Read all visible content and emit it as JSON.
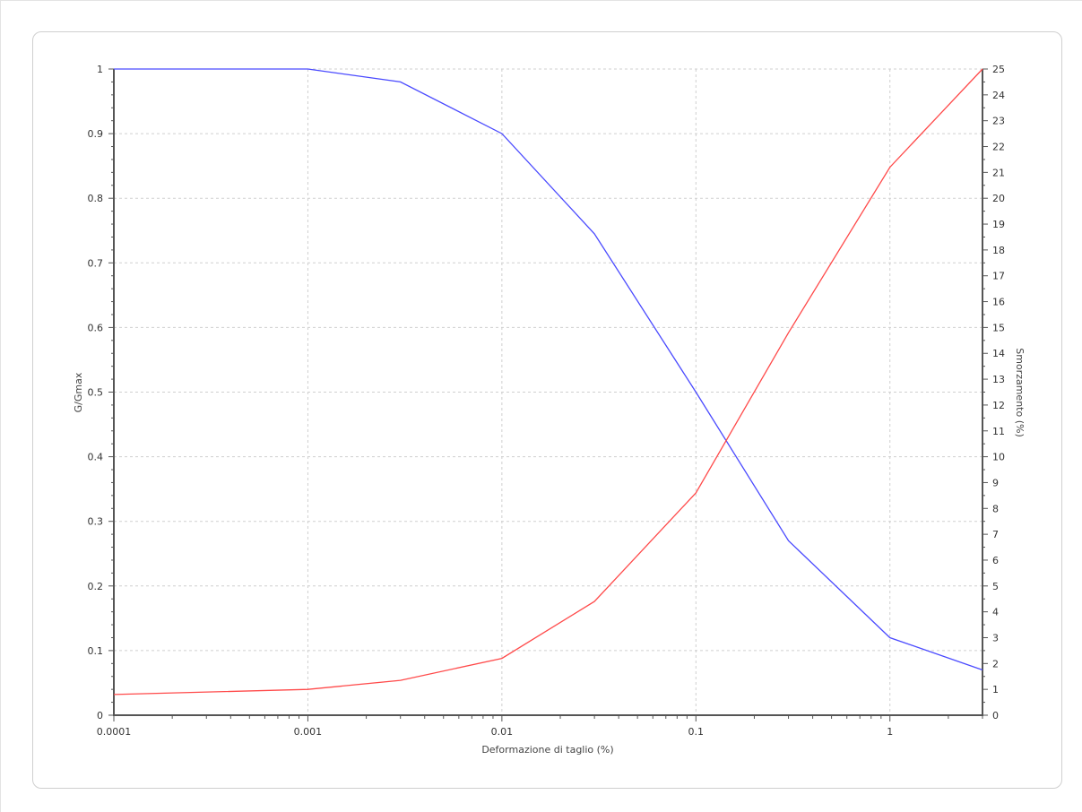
{
  "chart_data": {
    "type": "line",
    "title": "",
    "xlabel": "Deformazione di taglio (%)",
    "ylabel_left": "G/Gmax",
    "ylabel_right": "Smorzamento (%)",
    "x_scale": "log",
    "xlim": [
      0.0001,
      3
    ],
    "ylim_left": [
      0,
      1
    ],
    "ylim_right": [
      0,
      25
    ],
    "grid": true,
    "x_tick_labels": [
      "0.0001",
      "0.001",
      "0.01",
      "0.1",
      "1"
    ],
    "y_left_tick_labels": [
      "0",
      "0.1",
      "0.2",
      "0.3",
      "0.4",
      "0.5",
      "0.6",
      "0.7",
      "0.8",
      "0.9",
      "1"
    ],
    "y_right_tick_labels": [
      "0",
      "1",
      "2",
      "3",
      "4",
      "5",
      "6",
      "7",
      "8",
      "9",
      "10",
      "11",
      "12",
      "13",
      "14",
      "15",
      "16",
      "17",
      "18",
      "19",
      "20",
      "21",
      "22",
      "23",
      "24",
      "25"
    ],
    "series": [
      {
        "axis": "left",
        "color": "#4a4aff",
        "x": [
          0.0001,
          0.001,
          0.003,
          0.01,
          0.03,
          0.1,
          0.3,
          1,
          3
        ],
        "y": [
          1.0,
          1.0,
          0.98,
          0.9,
          0.745,
          0.5,
          0.27,
          0.12,
          0.07
        ]
      },
      {
        "axis": "right",
        "color": "#ff4a4a",
        "x": [
          0.0001,
          0.001,
          0.003,
          0.01,
          0.03,
          0.1,
          0.3,
          1,
          3
        ],
        "y": [
          0.8,
          1.0,
          1.35,
          2.2,
          4.4,
          8.6,
          14.8,
          21.2,
          25.0
        ]
      }
    ]
  }
}
